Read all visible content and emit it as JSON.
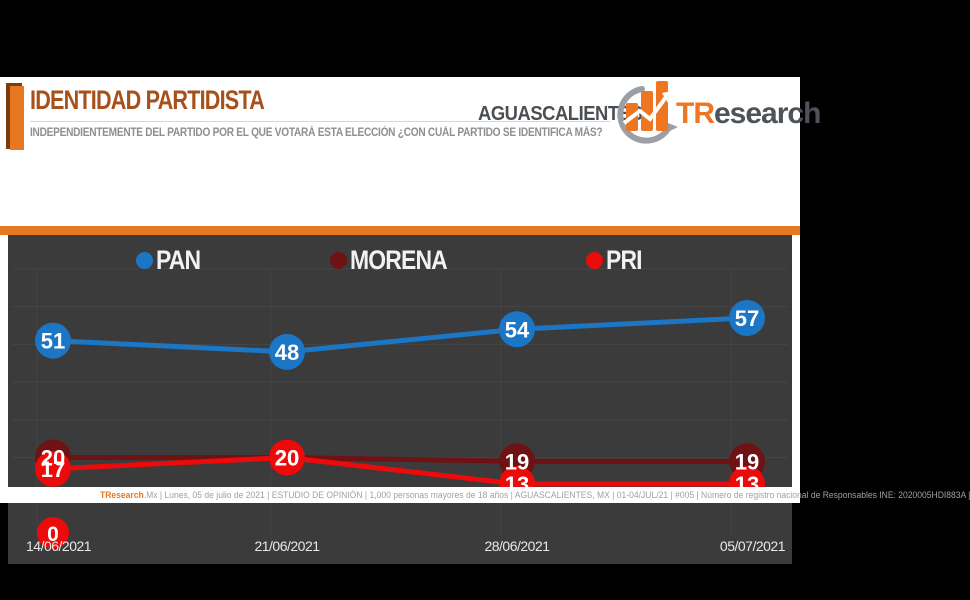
{
  "header": {
    "title": "IDENTIDAD PARTIDISTA",
    "subtitle": "INDEPENDIENTEMENTE DEL PARTIDO POR EL QUE VOTARÁ ESTA ELECCIÓN ¿CON CUÁL PARTIDO SE IDENTIFICA MÁS?",
    "region": "AGUASCALIENTES",
    "brand": {
      "prefix": "TR",
      "suffix": "esearch"
    }
  },
  "colors": {
    "accent_orange": "#e87722",
    "title_brown": "#a8501a",
    "panel_bg": "#3b3b3b",
    "pan_blue": "#1b76c5",
    "morena_maroon": "#6e1214",
    "pri_red": "#ec0a0a"
  },
  "chart_data": {
    "type": "line",
    "title": "IDENTIDAD PARTIDISTA — AGUASCALIENTES",
    "x": [
      "14/06/2021",
      "21/06/2021",
      "28/06/2021",
      "05/07/2021"
    ],
    "series": [
      {
        "name": "PAN",
        "color": "#1b76c5",
        "values": [
          51,
          48,
          54,
          57
        ]
      },
      {
        "name": "MORENA",
        "color": "#6e1214",
        "values": [
          20,
          20,
          19,
          19
        ]
      },
      {
        "name": "PRI",
        "color": "#ec0a0a",
        "values": [
          17,
          20,
          13,
          13
        ]
      }
    ],
    "extra_points": [
      {
        "x": "14/06/2021",
        "value": 0,
        "label": "0",
        "color": "#ec0a0a"
      }
    ],
    "ylim": [
      0,
      70
    ],
    "grid": true,
    "legend_position": "top",
    "point_labels": true
  },
  "footer": {
    "brand": "TResearch",
    "text_after_brand": ".Mx | Lunes, 05 de julio de 2021 | ESTUDIO DE OPINIÓN | 1,000 personas mayores de 18 años | AGUASCALIENTES, MX | 01-04/JUL/21 | #005 | Número de registro nacional de Responsables INE: 2020005HDI883A |"
  }
}
